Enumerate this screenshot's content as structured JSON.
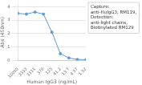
{
  "chart_data": {
    "type": "line",
    "categories": [
      "10000",
      "3333",
      "1111",
      "370",
      "123",
      "41.2",
      "13.7",
      "4.57",
      "1.52"
    ],
    "values": [
      3.5,
      3.45,
      3.6,
      3.45,
      2.1,
      0.5,
      0.18,
      0.07,
      0.05
    ],
    "color": "#5b9bd5",
    "marker": "circle",
    "x_label": "Human IgG3 (ng/mL)",
    "y_label": "Abs (450nm)",
    "ylim": [
      0,
      4.2
    ],
    "yticks": [
      0,
      1,
      2,
      3,
      4
    ],
    "grid": true,
    "annotation": [
      "Capture:",
      "anti-HuIgG3, RM119,",
      "Detection:",
      "anti-light chains,",
      "Biotinylated RM129"
    ]
  }
}
